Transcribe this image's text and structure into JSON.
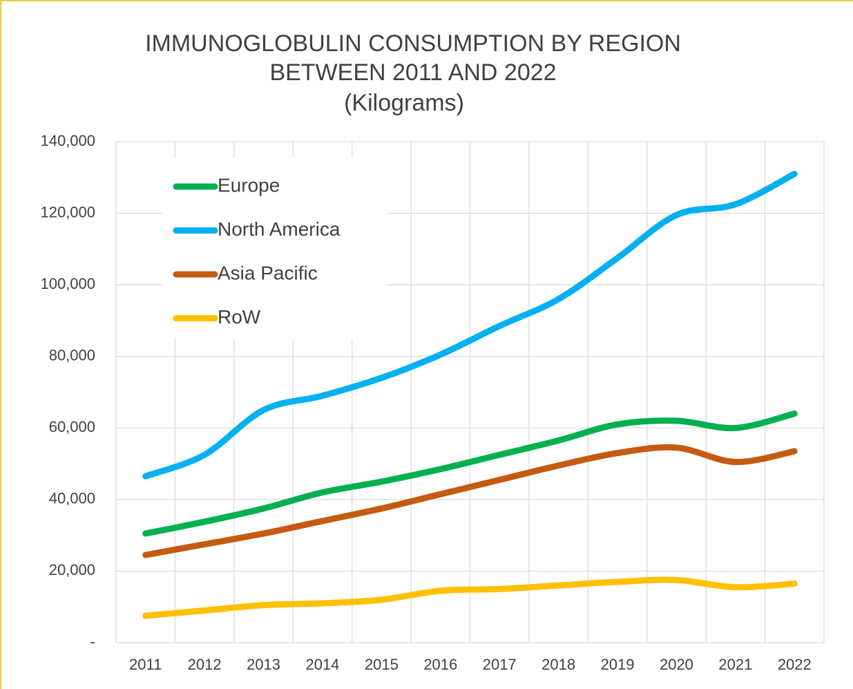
{
  "chart_data": {
    "type": "line",
    "title": [
      "IMMUNOGLOBULIN CONSUMPTION BY REGION",
      "BETWEEN 2011 AND  2022"
    ],
    "subtitle": "(Kilograms)",
    "categories": [
      "2011",
      "2012",
      "2013",
      "2014",
      "2015",
      "2016",
      "2017",
      "2018",
      "2019",
      "2020",
      "2021",
      "2022"
    ],
    "series": [
      {
        "name": "Europe",
        "color": "#00b050",
        "values": [
          30500,
          33800,
          37500,
          42000,
          45000,
          48500,
          52500,
          56500,
          61000,
          62000,
          60000,
          64000
        ]
      },
      {
        "name": "North America",
        "color": "#00b0f0",
        "values": [
          46500,
          52500,
          65000,
          69000,
          74000,
          80500,
          88500,
          96000,
          107500,
          119500,
          122500,
          131000
        ]
      },
      {
        "name": "Asia Pacific",
        "color": "#c55a11",
        "values": [
          24500,
          27500,
          30500,
          34000,
          37500,
          41500,
          45500,
          49500,
          53000,
          54500,
          50500,
          53500
        ]
      },
      {
        "name": "RoW",
        "color": "#ffc000",
        "values": [
          7500,
          9000,
          10500,
          11000,
          12000,
          14500,
          15000,
          16000,
          17000,
          17500,
          15500,
          16500
        ]
      }
    ],
    "ylim": [
      0,
      140000
    ],
    "yticks": [
      {
        "value": 0,
        "label": "-"
      },
      {
        "value": 20000,
        "label": "20,000"
      },
      {
        "value": 40000,
        "label": "40,000"
      },
      {
        "value": 60000,
        "label": "60,000"
      },
      {
        "value": 80000,
        "label": "80,000"
      },
      {
        "value": 100000,
        "label": "100,000"
      },
      {
        "value": 120000,
        "label": "120,000"
      },
      {
        "value": 140000,
        "label": "140,000"
      }
    ],
    "grid": true,
    "legend": "upper-left"
  }
}
